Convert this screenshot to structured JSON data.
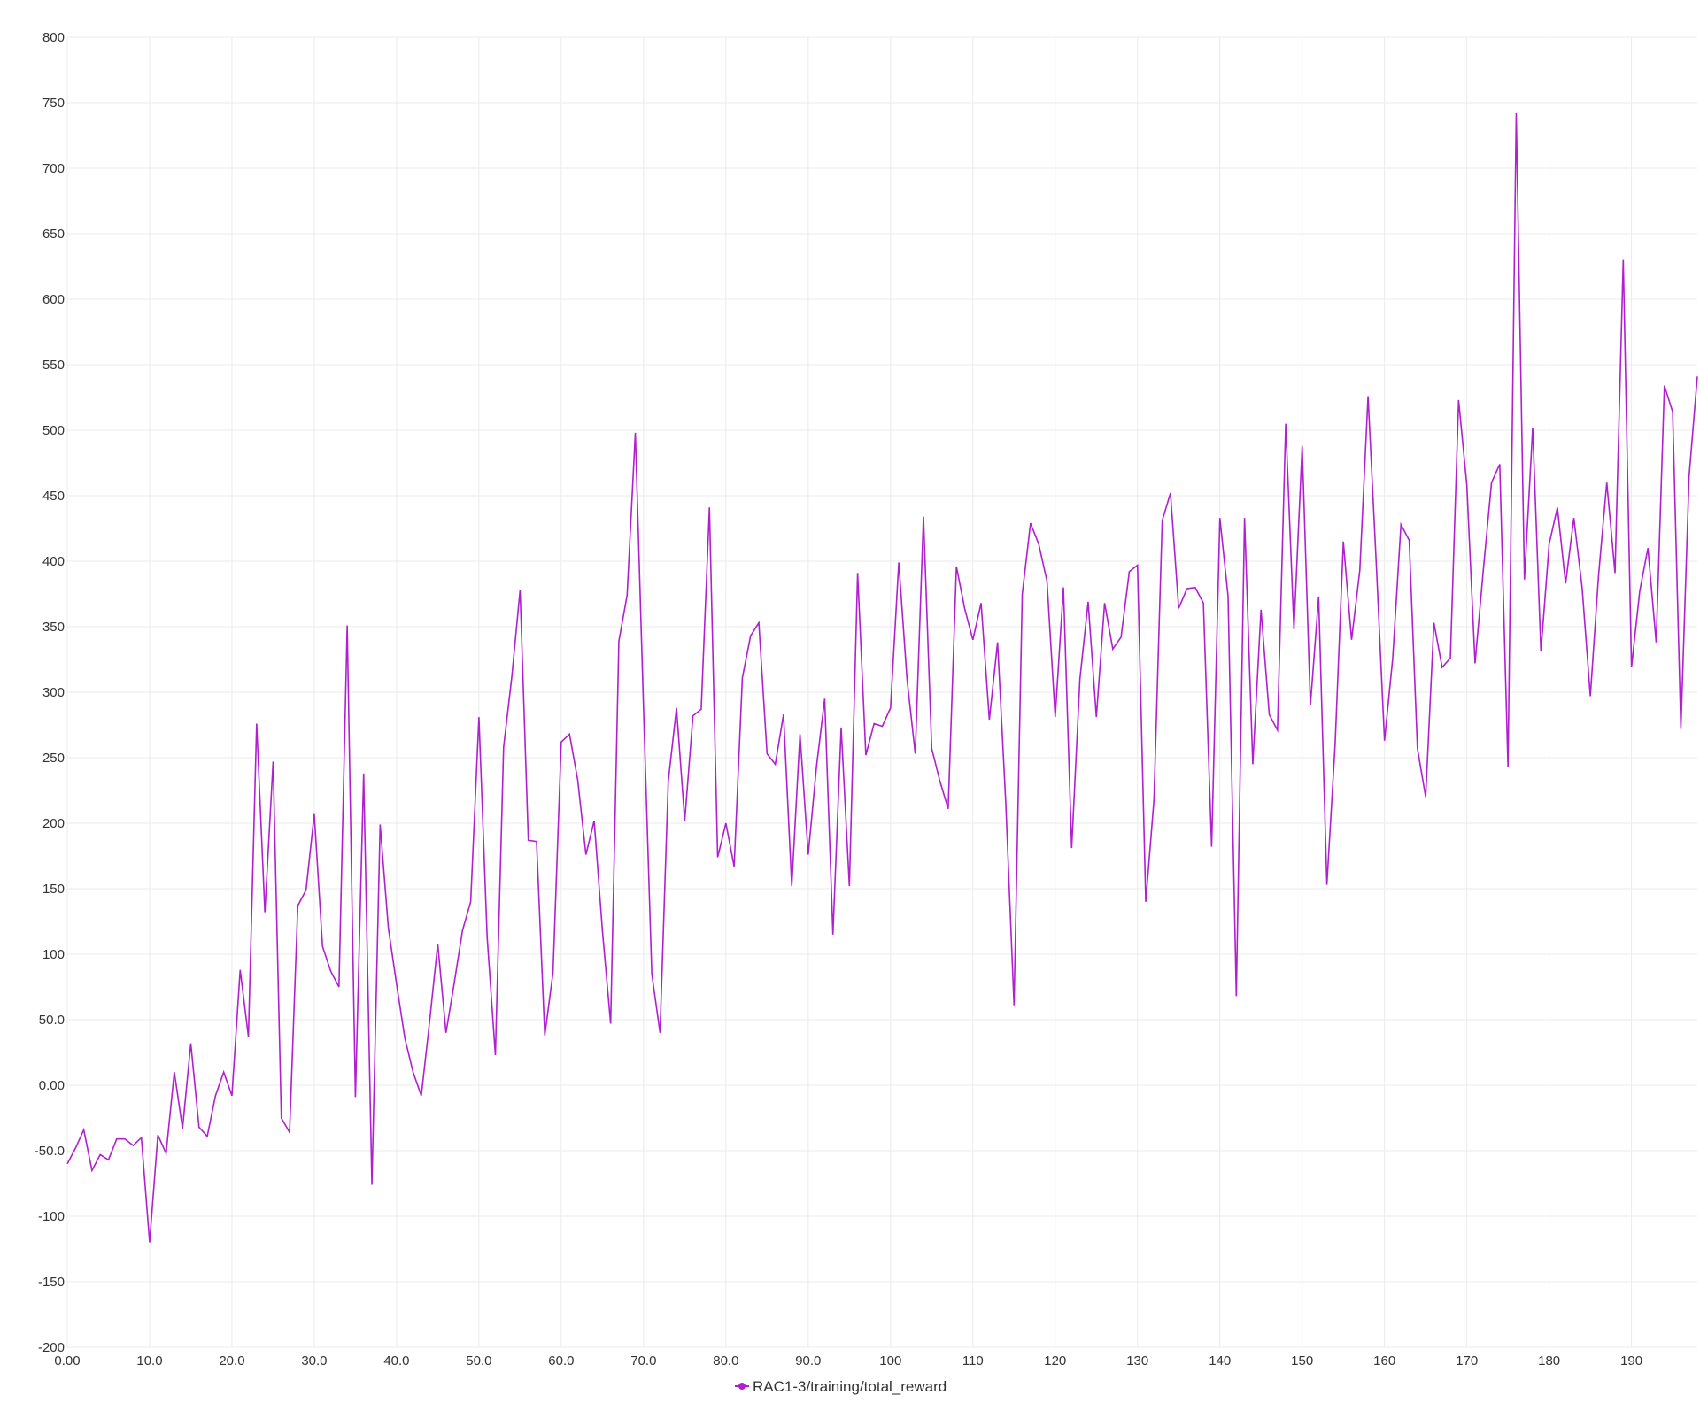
{
  "chart_data": {
    "type": "line",
    "title": "",
    "xlabel": "",
    "ylabel": "",
    "xlim": [
      0,
      198
    ],
    "ylim": [
      -200,
      800
    ],
    "grid": true,
    "legend_position": "bottom-center",
    "x_tick_labels": [
      {
        "value": 0,
        "label": "0.00"
      },
      {
        "value": 10,
        "label": "10.0"
      },
      {
        "value": 20,
        "label": "20.0"
      },
      {
        "value": 30,
        "label": "30.0"
      },
      {
        "value": 40,
        "label": "40.0"
      },
      {
        "value": 50,
        "label": "50.0"
      },
      {
        "value": 60,
        "label": "60.0"
      },
      {
        "value": 70,
        "label": "70.0"
      },
      {
        "value": 80,
        "label": "80.0"
      },
      {
        "value": 90,
        "label": "90.0"
      },
      {
        "value": 100,
        "label": "100"
      },
      {
        "value": 110,
        "label": "110"
      },
      {
        "value": 120,
        "label": "120"
      },
      {
        "value": 130,
        "label": "130"
      },
      {
        "value": 140,
        "label": "140"
      },
      {
        "value": 150,
        "label": "150"
      },
      {
        "value": 160,
        "label": "160"
      },
      {
        "value": 170,
        "label": "170"
      },
      {
        "value": 180,
        "label": "180"
      },
      {
        "value": 190,
        "label": "190"
      }
    ],
    "y_tick_labels": [
      {
        "value": 800,
        "label": "800"
      },
      {
        "value": 750,
        "label": "750"
      },
      {
        "value": 700,
        "label": "700"
      },
      {
        "value": 650,
        "label": "650"
      },
      {
        "value": 600,
        "label": "600"
      },
      {
        "value": 550,
        "label": "550"
      },
      {
        "value": 500,
        "label": "500"
      },
      {
        "value": 450,
        "label": "450"
      },
      {
        "value": 400,
        "label": "400"
      },
      {
        "value": 350,
        "label": "350"
      },
      {
        "value": 300,
        "label": "300"
      },
      {
        "value": 250,
        "label": "250"
      },
      {
        "value": 200,
        "label": "200"
      },
      {
        "value": 150,
        "label": "150"
      },
      {
        "value": 100,
        "label": "100"
      },
      {
        "value": 50,
        "label": "50.0"
      },
      {
        "value": 0,
        "label": "0.00"
      },
      {
        "value": -50,
        "label": "-50.0"
      },
      {
        "value": -100,
        "label": "-100"
      },
      {
        "value": -150,
        "label": "-150"
      },
      {
        "value": -200,
        "label": "-200"
      }
    ],
    "series": [
      {
        "name": "RAC1-3/training/total_reward",
        "color": "#b01fd0",
        "points": [
          [
            0,
            -60
          ],
          [
            1,
            -48
          ],
          [
            2,
            -34
          ],
          [
            3,
            -65
          ],
          [
            4,
            -53
          ],
          [
            5,
            -57
          ],
          [
            6,
            -41
          ],
          [
            7,
            -41
          ],
          [
            8,
            -46
          ],
          [
            9,
            -40
          ],
          [
            10,
            -120
          ],
          [
            11,
            -38
          ],
          [
            12,
            -52
          ],
          [
            13,
            10
          ],
          [
            14,
            -33
          ],
          [
            15,
            32
          ],
          [
            16,
            -32
          ],
          [
            17,
            -39
          ],
          [
            18,
            -8
          ],
          [
            19,
            10
          ],
          [
            20,
            -8
          ],
          [
            21,
            88
          ],
          [
            22,
            37
          ],
          [
            23,
            276
          ],
          [
            24,
            132
          ],
          [
            25,
            247
          ],
          [
            26,
            -25
          ],
          [
            27,
            -36
          ],
          [
            28,
            137
          ],
          [
            29,
            149
          ],
          [
            30,
            207
          ],
          [
            31,
            106
          ],
          [
            32,
            87
          ],
          [
            33,
            75
          ],
          [
            34,
            351
          ],
          [
            35,
            -9
          ],
          [
            36,
            238
          ],
          [
            37,
            -76
          ],
          [
            38,
            199
          ],
          [
            39,
            120
          ],
          [
            40,
            77
          ],
          [
            41,
            36
          ],
          [
            42,
            10
          ],
          [
            43,
            -8
          ],
          [
            44,
            48
          ],
          [
            45,
            108
          ],
          [
            46,
            40
          ],
          [
            47,
            78
          ],
          [
            48,
            118
          ],
          [
            49,
            140
          ],
          [
            50,
            281
          ],
          [
            51,
            113
          ],
          [
            52,
            23
          ],
          [
            53,
            258
          ],
          [
            54,
            312
          ],
          [
            55,
            378
          ],
          [
            56,
            187
          ],
          [
            57,
            186
          ],
          [
            58,
            38
          ],
          [
            59,
            86
          ],
          [
            60,
            262
          ],
          [
            61,
            268
          ],
          [
            62,
            233
          ],
          [
            63,
            176
          ],
          [
            64,
            202
          ],
          [
            65,
            118
          ],
          [
            66,
            47
          ],
          [
            67,
            339
          ],
          [
            68,
            374
          ],
          [
            69,
            498
          ],
          [
            70,
            287
          ],
          [
            71,
            85
          ],
          [
            72,
            40
          ],
          [
            73,
            232
          ],
          [
            74,
            288
          ],
          [
            75,
            202
          ],
          [
            76,
            282
          ],
          [
            77,
            287
          ],
          [
            78,
            441
          ],
          [
            79,
            174
          ],
          [
            80,
            200
          ],
          [
            81,
            167
          ],
          [
            82,
            311
          ],
          [
            83,
            343
          ],
          [
            84,
            353
          ],
          [
            85,
            253
          ],
          [
            86,
            245
          ],
          [
            87,
            283
          ],
          [
            88,
            152
          ],
          [
            89,
            268
          ],
          [
            90,
            176
          ],
          [
            91,
            243
          ],
          [
            92,
            295
          ],
          [
            93,
            115
          ],
          [
            94,
            273
          ],
          [
            95,
            152
          ],
          [
            96,
            391
          ],
          [
            97,
            252
          ],
          [
            98,
            276
          ],
          [
            99,
            274
          ],
          [
            100,
            288
          ],
          [
            101,
            399
          ],
          [
            102,
            310
          ],
          [
            103,
            253
          ],
          [
            104,
            434
          ],
          [
            105,
            257
          ],
          [
            106,
            232
          ],
          [
            107,
            211
          ],
          [
            108,
            396
          ],
          [
            109,
            364
          ],
          [
            110,
            340
          ],
          [
            111,
            368
          ],
          [
            112,
            279
          ],
          [
            113,
            338
          ],
          [
            114,
            215
          ],
          [
            115,
            61
          ],
          [
            116,
            375
          ],
          [
            117,
            429
          ],
          [
            118,
            413
          ],
          [
            119,
            385
          ],
          [
            120,
            281
          ],
          [
            121,
            380
          ],
          [
            122,
            181
          ],
          [
            123,
            310
          ],
          [
            124,
            369
          ],
          [
            125,
            281
          ],
          [
            126,
            368
          ],
          [
            127,
            333
          ],
          [
            128,
            342
          ],
          [
            129,
            392
          ],
          [
            130,
            397
          ],
          [
            131,
            140
          ],
          [
            132,
            218
          ],
          [
            133,
            431
          ],
          [
            134,
            452
          ],
          [
            135,
            364
          ],
          [
            136,
            379
          ],
          [
            137,
            380
          ],
          [
            138,
            368
          ],
          [
            139,
            182
          ],
          [
            140,
            433
          ],
          [
            141,
            373
          ],
          [
            142,
            68
          ],
          [
            143,
            433
          ],
          [
            144,
            245
          ],
          [
            145,
            363
          ],
          [
            146,
            283
          ],
          [
            147,
            271
          ],
          [
            148,
            505
          ],
          [
            149,
            348
          ],
          [
            150,
            488
          ],
          [
            151,
            290
          ],
          [
            152,
            373
          ],
          [
            153,
            153
          ],
          [
            154,
            260
          ],
          [
            155,
            415
          ],
          [
            156,
            340
          ],
          [
            157,
            393
          ],
          [
            158,
            526
          ],
          [
            159,
            398
          ],
          [
            160,
            263
          ],
          [
            161,
            326
          ],
          [
            162,
            428
          ],
          [
            163,
            416
          ],
          [
            164,
            257
          ],
          [
            165,
            220
          ],
          [
            166,
            353
          ],
          [
            167,
            319
          ],
          [
            168,
            326
          ],
          [
            169,
            523
          ],
          [
            170,
            458
          ],
          [
            171,
            322
          ],
          [
            172,
            393
          ],
          [
            173,
            460
          ],
          [
            174,
            474
          ],
          [
            175,
            243
          ],
          [
            176,
            742
          ],
          [
            177,
            386
          ],
          [
            178,
            502
          ],
          [
            179,
            331
          ],
          [
            180,
            413
          ],
          [
            181,
            441
          ],
          [
            182,
            383
          ],
          [
            183,
            433
          ],
          [
            184,
            380
          ],
          [
            185,
            297
          ],
          [
            186,
            389
          ],
          [
            187,
            460
          ],
          [
            188,
            391
          ],
          [
            189,
            630
          ],
          [
            190,
            319
          ],
          [
            191,
            377
          ],
          [
            192,
            410
          ],
          [
            193,
            338
          ],
          [
            194,
            534
          ],
          [
            195,
            514
          ],
          [
            196,
            272
          ],
          [
            197,
            465
          ],
          [
            198,
            541
          ]
        ]
      }
    ]
  }
}
